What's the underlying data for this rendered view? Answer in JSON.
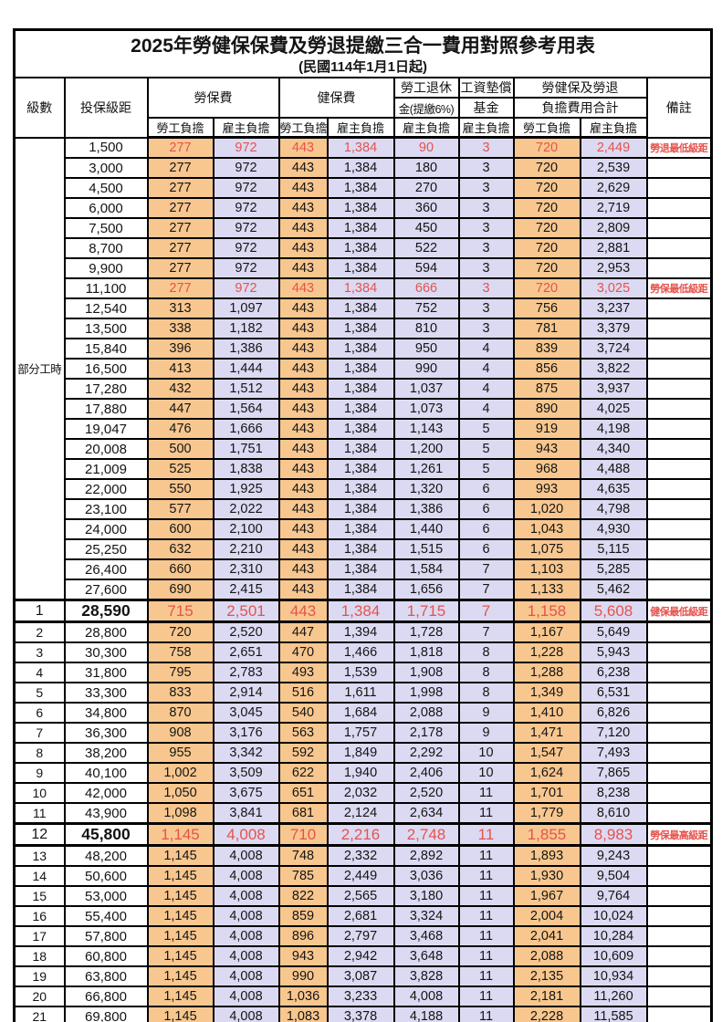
{
  "title": "2025年勞健保保費及勞退提繳三合一費用對照參考用表",
  "subtitle": "(民國114年1月1日起)",
  "colors": {
    "employee_bg": "#f8c78f",
    "employer_bg": "#dcdaf2",
    "highlight_red": "#e5534d"
  },
  "header": {
    "level": "級數",
    "bracket": "投保級距",
    "labor_fee": "勞保費",
    "health_fee": "健保費",
    "pension_line1": "勞工退休",
    "pension_line2": "金(提繳6%)",
    "wage_fund_line1": "工資墊償",
    "wage_fund_line2": "基金",
    "total_line1": "勞健保及勞退",
    "total_line2": "負擔費用合計",
    "note": "備註",
    "employee": "勞工負擔",
    "employer": "雇主負擔"
  },
  "part_time": {
    "label": "部分工時",
    "rowspan": 23
  },
  "rows": [
    {
      "level": "",
      "bracket": "1,500",
      "values": [
        "277",
        "972",
        "443",
        "1,384",
        "90",
        "3",
        "720",
        "2,449"
      ],
      "note": "勞退最低級距",
      "red": true
    },
    {
      "level": "",
      "bracket": "3,000",
      "values": [
        "277",
        "972",
        "443",
        "1,384",
        "180",
        "3",
        "720",
        "2,539"
      ],
      "note": ""
    },
    {
      "level": "",
      "bracket": "4,500",
      "values": [
        "277",
        "972",
        "443",
        "1,384",
        "270",
        "3",
        "720",
        "2,629"
      ],
      "note": ""
    },
    {
      "level": "",
      "bracket": "6,000",
      "values": [
        "277",
        "972",
        "443",
        "1,384",
        "360",
        "3",
        "720",
        "2,719"
      ],
      "note": ""
    },
    {
      "level": "",
      "bracket": "7,500",
      "values": [
        "277",
        "972",
        "443",
        "1,384",
        "450",
        "3",
        "720",
        "2,809"
      ],
      "note": ""
    },
    {
      "level": "",
      "bracket": "8,700",
      "values": [
        "277",
        "972",
        "443",
        "1,384",
        "522",
        "3",
        "720",
        "2,881"
      ],
      "note": ""
    },
    {
      "level": "",
      "bracket": "9,900",
      "values": [
        "277",
        "972",
        "443",
        "1,384",
        "594",
        "3",
        "720",
        "2,953"
      ],
      "note": ""
    },
    {
      "level": "",
      "bracket": "11,100",
      "values": [
        "277",
        "972",
        "443",
        "1,384",
        "666",
        "3",
        "720",
        "3,025"
      ],
      "note": "勞保最低級距",
      "red": true
    },
    {
      "level": "",
      "bracket": "12,540",
      "values": [
        "313",
        "1,097",
        "443",
        "1,384",
        "752",
        "3",
        "756",
        "3,237"
      ],
      "note": ""
    },
    {
      "level": "",
      "bracket": "13,500",
      "values": [
        "338",
        "1,182",
        "443",
        "1,384",
        "810",
        "3",
        "781",
        "3,379"
      ],
      "note": ""
    },
    {
      "level": "",
      "bracket": "15,840",
      "values": [
        "396",
        "1,386",
        "443",
        "1,384",
        "950",
        "4",
        "839",
        "3,724"
      ],
      "note": ""
    },
    {
      "level": "",
      "bracket": "16,500",
      "values": [
        "413",
        "1,444",
        "443",
        "1,384",
        "990",
        "4",
        "856",
        "3,822"
      ],
      "note": ""
    },
    {
      "level": "",
      "bracket": "17,280",
      "values": [
        "432",
        "1,512",
        "443",
        "1,384",
        "1,037",
        "4",
        "875",
        "3,937"
      ],
      "note": ""
    },
    {
      "level": "",
      "bracket": "17,880",
      "values": [
        "447",
        "1,564",
        "443",
        "1,384",
        "1,073",
        "4",
        "890",
        "4,025"
      ],
      "note": ""
    },
    {
      "level": "",
      "bracket": "19,047",
      "values": [
        "476",
        "1,666",
        "443",
        "1,384",
        "1,143",
        "5",
        "919",
        "4,198"
      ],
      "note": ""
    },
    {
      "level": "",
      "bracket": "20,008",
      "values": [
        "500",
        "1,751",
        "443",
        "1,384",
        "1,200",
        "5",
        "943",
        "4,340"
      ],
      "note": ""
    },
    {
      "level": "",
      "bracket": "21,009",
      "values": [
        "525",
        "1,838",
        "443",
        "1,384",
        "1,261",
        "5",
        "968",
        "4,488"
      ],
      "note": ""
    },
    {
      "level": "",
      "bracket": "22,000",
      "values": [
        "550",
        "1,925",
        "443",
        "1,384",
        "1,320",
        "6",
        "993",
        "4,635"
      ],
      "note": ""
    },
    {
      "level": "",
      "bracket": "23,100",
      "values": [
        "577",
        "2,022",
        "443",
        "1,384",
        "1,386",
        "6",
        "1,020",
        "4,798"
      ],
      "note": ""
    },
    {
      "level": "",
      "bracket": "24,000",
      "values": [
        "600",
        "2,100",
        "443",
        "1,384",
        "1,440",
        "6",
        "1,043",
        "4,930"
      ],
      "note": ""
    },
    {
      "level": "",
      "bracket": "25,250",
      "values": [
        "632",
        "2,210",
        "443",
        "1,384",
        "1,515",
        "6",
        "1,075",
        "5,115"
      ],
      "note": ""
    },
    {
      "level": "",
      "bracket": "26,400",
      "values": [
        "660",
        "2,310",
        "443",
        "1,384",
        "1,584",
        "7",
        "1,103",
        "5,285"
      ],
      "note": ""
    },
    {
      "level": "",
      "bracket": "27,600",
      "values": [
        "690",
        "2,415",
        "443",
        "1,384",
        "1,656",
        "7",
        "1,133",
        "5,462"
      ],
      "note": ""
    },
    {
      "level": "1",
      "bracket": "28,590",
      "values": [
        "715",
        "2,501",
        "443",
        "1,384",
        "1,715",
        "7",
        "1,158",
        "5,608"
      ],
      "note": "健保最低級距",
      "red": true,
      "big": true
    },
    {
      "level": "2",
      "bracket": "28,800",
      "values": [
        "720",
        "2,520",
        "447",
        "1,394",
        "1,728",
        "7",
        "1,167",
        "5,649"
      ],
      "note": ""
    },
    {
      "level": "3",
      "bracket": "30,300",
      "values": [
        "758",
        "2,651",
        "470",
        "1,466",
        "1,818",
        "8",
        "1,228",
        "5,943"
      ],
      "note": ""
    },
    {
      "level": "4",
      "bracket": "31,800",
      "values": [
        "795",
        "2,783",
        "493",
        "1,539",
        "1,908",
        "8",
        "1,288",
        "6,238"
      ],
      "note": ""
    },
    {
      "level": "5",
      "bracket": "33,300",
      "values": [
        "833",
        "2,914",
        "516",
        "1,611",
        "1,998",
        "8",
        "1,349",
        "6,531"
      ],
      "note": ""
    },
    {
      "level": "6",
      "bracket": "34,800",
      "values": [
        "870",
        "3,045",
        "540",
        "1,684",
        "2,088",
        "9",
        "1,410",
        "6,826"
      ],
      "note": ""
    },
    {
      "level": "7",
      "bracket": "36,300",
      "values": [
        "908",
        "3,176",
        "563",
        "1,757",
        "2,178",
        "9",
        "1,471",
        "7,120"
      ],
      "note": ""
    },
    {
      "level": "8",
      "bracket": "38,200",
      "values": [
        "955",
        "3,342",
        "592",
        "1,849",
        "2,292",
        "10",
        "1,547",
        "7,493"
      ],
      "note": ""
    },
    {
      "level": "9",
      "bracket": "40,100",
      "values": [
        "1,002",
        "3,509",
        "622",
        "1,940",
        "2,406",
        "10",
        "1,624",
        "7,865"
      ],
      "note": ""
    },
    {
      "level": "10",
      "bracket": "42,000",
      "values": [
        "1,050",
        "3,675",
        "651",
        "2,032",
        "2,520",
        "11",
        "1,701",
        "8,238"
      ],
      "note": ""
    },
    {
      "level": "11",
      "bracket": "43,900",
      "values": [
        "1,098",
        "3,841",
        "681",
        "2,124",
        "2,634",
        "11",
        "1,779",
        "8,610"
      ],
      "note": ""
    },
    {
      "level": "12",
      "bracket": "45,800",
      "values": [
        "1,145",
        "4,008",
        "710",
        "2,216",
        "2,748",
        "11",
        "1,855",
        "8,983"
      ],
      "note": "勞保最高級距",
      "red": true,
      "big": true
    },
    {
      "level": "13",
      "bracket": "48,200",
      "values": [
        "1,145",
        "4,008",
        "748",
        "2,332",
        "2,892",
        "11",
        "1,893",
        "9,243"
      ],
      "note": ""
    },
    {
      "level": "14",
      "bracket": "50,600",
      "values": [
        "1,145",
        "4,008",
        "785",
        "2,449",
        "3,036",
        "11",
        "1,930",
        "9,504"
      ],
      "note": ""
    },
    {
      "level": "15",
      "bracket": "53,000",
      "values": [
        "1,145",
        "4,008",
        "822",
        "2,565",
        "3,180",
        "11",
        "1,967",
        "9,764"
      ],
      "note": ""
    },
    {
      "level": "16",
      "bracket": "55,400",
      "values": [
        "1,145",
        "4,008",
        "859",
        "2,681",
        "3,324",
        "11",
        "2,004",
        "10,024"
      ],
      "note": ""
    },
    {
      "level": "17",
      "bracket": "57,800",
      "values": [
        "1,145",
        "4,008",
        "896",
        "2,797",
        "3,468",
        "11",
        "2,041",
        "10,284"
      ],
      "note": ""
    },
    {
      "level": "18",
      "bracket": "60,800",
      "values": [
        "1,145",
        "4,008",
        "943",
        "2,942",
        "3,648",
        "11",
        "2,088",
        "10,609"
      ],
      "note": ""
    },
    {
      "level": "19",
      "bracket": "63,800",
      "values": [
        "1,145",
        "4,008",
        "990",
        "3,087",
        "3,828",
        "11",
        "2,135",
        "10,934"
      ],
      "note": ""
    },
    {
      "level": "20",
      "bracket": "66,800",
      "values": [
        "1,145",
        "4,008",
        "1,036",
        "3,233",
        "4,008",
        "11",
        "2,181",
        "11,260"
      ],
      "note": ""
    },
    {
      "level": "21",
      "bracket": "69,800",
      "values": [
        "1,145",
        "4,008",
        "1,083",
        "3,378",
        "4,188",
        "11",
        "2,228",
        "11,585"
      ],
      "note": ""
    }
  ],
  "value_column_kinds": [
    "employee",
    "employer",
    "employee",
    "employer",
    "employer",
    "employer",
    "employee",
    "employer"
  ]
}
